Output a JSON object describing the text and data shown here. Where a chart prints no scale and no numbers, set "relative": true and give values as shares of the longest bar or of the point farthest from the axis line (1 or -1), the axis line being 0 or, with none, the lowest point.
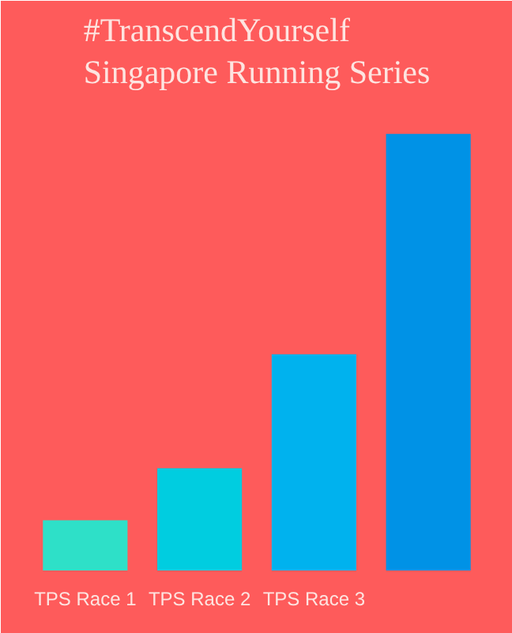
{
  "chart_data": {
    "type": "bar",
    "title": "#TranscendYourself\nSingapore Running Series",
    "relative": true,
    "categories": [
      "TPS Race 1",
      "TPS Race 2",
      "TPS Race 3",
      null
    ],
    "values": [
      0.115,
      0.234,
      0.495,
      1
    ],
    "colors": [
      "#2ee0c8",
      "#00cde0",
      "#00b2ee",
      "#0092e6"
    ]
  }
}
